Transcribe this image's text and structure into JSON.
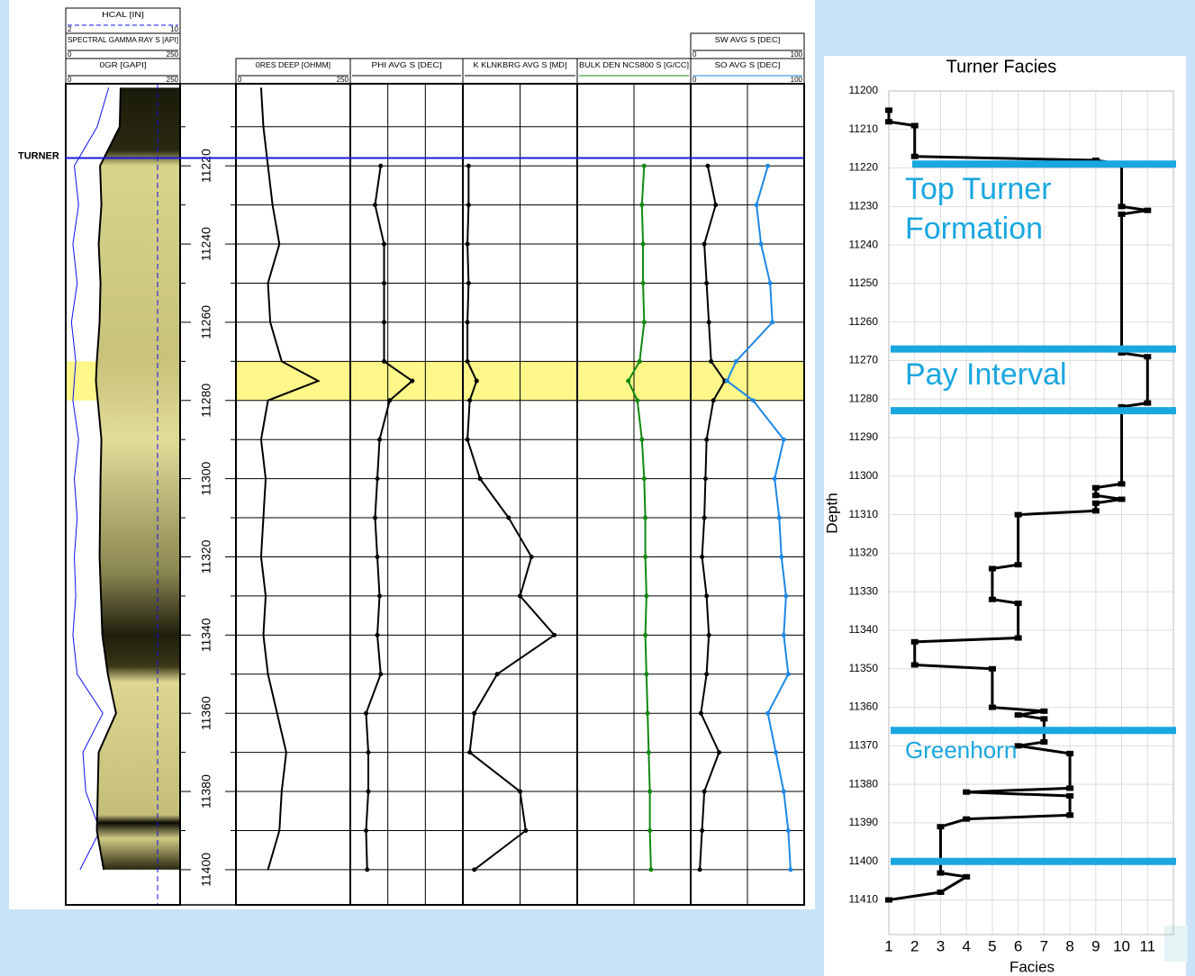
{
  "chart_data": [
    {
      "type": "well-log",
      "depths": [
        11200,
        11210,
        11220,
        11230,
        11240,
        11250,
        11260,
        11270,
        11275,
        11280,
        11290,
        11300,
        11310,
        11320,
        11330,
        11340,
        11350,
        11360,
        11370,
        11380,
        11390,
        11400
      ],
      "ylim": [
        11199,
        11409
      ],
      "yticks": [
        11220,
        11240,
        11260,
        11280,
        11300,
        11320,
        11340,
        11360,
        11380,
        11400
      ],
      "minor_yticks": [
        11210,
        11230,
        11250,
        11270,
        11290,
        11310,
        11330,
        11350,
        11370,
        11390
      ],
      "marker": {
        "label": "TURNER",
        "depth": 11218
      },
      "pay_interval": [
        11270,
        11280
      ],
      "tracks": [
        {
          "series": [
            {
              "label": "HCAL [IN]",
              "xlim": [
                2,
                10
              ],
              "show_scale": true,
              "color": "#1010ee",
              "values": [
                5.0,
                4.2,
                2.6,
                2.9,
                2.5,
                2.8,
                2.4,
                2.7,
                2.6,
                2.5,
                2.9,
                2.6,
                2.8,
                2.6,
                2.7,
                2.5,
                2.8,
                4.6,
                3.2,
                3.4,
                4.4,
                3.0
              ]
            },
            {
              "label": "SPECTRAL GAMMA RAY S [API]",
              "xlim": [
                0,
                250
              ],
              "show_scale": true,
              "color": "#000000"
            },
            {
              "label": "0GR [GAPI]",
              "xlim": [
                0,
                250
              ],
              "show_scale": true,
              "color": "#000000",
              "fill": true,
              "values": [
                120,
                118,
                75,
                78,
                72,
                76,
                74,
                68,
                66,
                70,
                78,
                76,
                75,
                74,
                77,
                80,
                92,
                110,
                72,
                70,
                68,
                83
              ]
            }
          ]
        },
        {
          "series": [
            {
              "label": "0RES DEEP [OHMM]",
              "xlim": [
                0,
                250
              ],
              "show_scale": true,
              "color": "#000000",
              "values": [
                55,
                60,
                70,
                80,
                95,
                70,
                75,
                100,
                180,
                70,
                55,
                65,
                60,
                55,
                65,
                60,
                70,
                90,
                110,
                100,
                95,
                70
              ]
            }
          ]
        },
        {
          "columns": 3,
          "series": [
            {
              "label": "PHI AVG S [DEC]",
              "xlim": [
                0,
                1
              ],
              "show_scale": false,
              "color": "#000000",
              "markers": true,
              "values": [
                null,
                null,
                0.27,
                0.22,
                0.3,
                0.3,
                0.3,
                0.3,
                0.55,
                0.35,
                0.26,
                0.24,
                0.22,
                0.24,
                0.26,
                0.24,
                0.27,
                0.14,
                0.16,
                0.16,
                0.14,
                0.15
              ]
            }
          ]
        },
        {
          "columns": 2,
          "series": [
            {
              "label": "K KLNKBRG AVG S [MD]",
              "xlim": [
                0,
                1
              ],
              "show_scale": false,
              "color": "#000000",
              "markers": true,
              "values": [
                null,
                null,
                0.05,
                0.05,
                0.04,
                0.05,
                0.04,
                0.04,
                0.12,
                0.06,
                0.04,
                0.15,
                0.4,
                0.6,
                0.5,
                0.8,
                0.3,
                0.1,
                0.06,
                0.5,
                0.55,
                0.1
              ]
            }
          ]
        },
        {
          "columns": 2,
          "series": [
            {
              "label": "BULK DEN NCS800 S [G/CC]",
              "xlim": [
                0,
                1
              ],
              "show_scale": false,
              "color": "#118811",
              "markers": true,
              "values": [
                null,
                null,
                0.59,
                0.57,
                0.58,
                0.58,
                0.59,
                0.55,
                0.45,
                0.53,
                0.57,
                0.59,
                0.6,
                0.6,
                0.61,
                0.6,
                0.61,
                0.62,
                0.63,
                0.64,
                0.64,
                0.65
              ]
            }
          ]
        },
        {
          "columns": 2,
          "series": [
            {
              "label": "SW AVG S [DEC]",
              "xlim": [
                0,
                100
              ],
              "show_scale": true,
              "color": "#000000",
              "markers": true,
              "values": [
                null,
                null,
                15,
                22,
                12,
                14,
                16,
                18,
                30,
                20,
                14,
                13,
                12,
                10,
                14,
                16,
                14,
                9,
                25,
                12,
                10,
                8
              ]
            },
            {
              "label": "SO AVG S [DEC]",
              "xlim": [
                0,
                100
              ],
              "show_scale": true,
              "color": "#1e88e5",
              "markers": true,
              "values": [
                null,
                null,
                68,
                58,
                62,
                70,
                72,
                40,
                32,
                55,
                82,
                74,
                78,
                80,
                84,
                82,
                86,
                68,
                75,
                82,
                86,
                88
              ]
            }
          ]
        }
      ]
    },
    {
      "type": "line",
      "title": "Turner Facies",
      "x_label": "Facies",
      "y_label": "Depth",
      "xlim": [
        1,
        12
      ],
      "xticks": [
        1,
        2,
        3,
        4,
        5,
        6,
        7,
        8,
        9,
        10,
        11
      ],
      "ylim": [
        11200,
        11419
      ],
      "y_inverted": true,
      "yticks": [
        11200,
        11210,
        11220,
        11230,
        11240,
        11250,
        11260,
        11270,
        11280,
        11290,
        11300,
        11310,
        11320,
        11330,
        11340,
        11350,
        11360,
        11370,
        11380,
        11390,
        11400,
        11410
      ],
      "grid": true,
      "series": [
        {
          "color": "#000000",
          "facies": [
            1,
            1,
            2,
            2,
            9,
            10,
            10,
            11,
            10,
            10,
            11,
            11,
            10,
            10,
            9,
            9,
            10,
            9,
            9,
            6,
            6,
            5,
            5,
            6,
            6,
            2,
            2,
            5,
            5,
            7,
            6,
            7,
            7,
            6,
            8,
            8,
            4,
            8,
            8,
            4,
            3,
            3,
            4,
            3,
            1
          ],
          "depth": [
            11205,
            11208,
            11209,
            11217,
            11218,
            11219,
            11230,
            11231,
            11232,
            11268,
            11269,
            11281,
            11282,
            11302,
            11303,
            11305,
            11306,
            11307,
            11309,
            11310,
            11323,
            11324,
            11332,
            11333,
            11342,
            11343,
            11349,
            11350,
            11360,
            11361,
            11362,
            11363,
            11369,
            11370,
            11372,
            11381,
            11382,
            11383,
            11388,
            11389,
            11391,
            11403,
            11404,
            11408,
            11410
          ]
        }
      ],
      "horizons": [
        {
          "depth": 11219,
          "label": "Top Turner Formation"
        },
        {
          "depth": 11267,
          "label": "Pay Interval"
        },
        {
          "depth": 11283
        },
        {
          "depth": 11366,
          "label": "Greenhorn"
        },
        {
          "depth": 11400
        }
      ],
      "horizon_color": "#1aa7e0"
    }
  ]
}
